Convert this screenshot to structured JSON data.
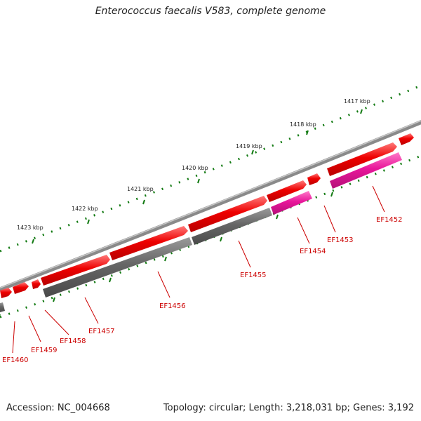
{
  "title": "Enterococcus faecalis V583, complete genome",
  "footer": {
    "accession": "Accession: NC_004668",
    "summary": "Topology: circular; Length: 3,218,031 bp; Genes: 3,192"
  },
  "colors": {
    "backbone": "#7b7b7b",
    "gene_forward": "#ee0000",
    "gene_reverse_gray": "#6b6b6b",
    "gene_reverse_pink": "#e8169a",
    "tick_green": "#127a12",
    "label_red": "#cc0000"
  },
  "kbp_labels": [
    "1417 kbp",
    "1418 kbp",
    "1419 kbp",
    "1420 kbp",
    "1421 kbp",
    "1422 kbp",
    "1423 kbp"
  ],
  "gene_labels": [
    "EF1452",
    "EF1453",
    "EF1454",
    "EF1455",
    "EF1456",
    "EF1457",
    "EF1458",
    "EF1459",
    "EF1460"
  ]
}
